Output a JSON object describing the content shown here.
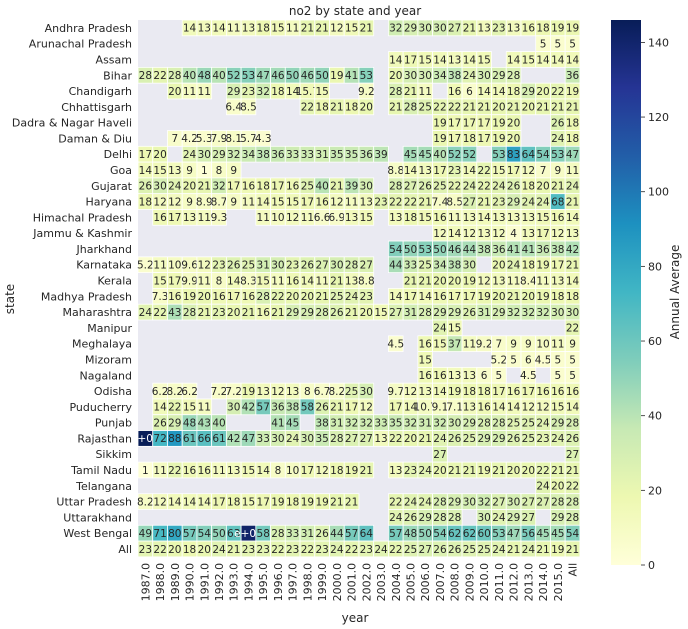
{
  "chart_data": {
    "type": "heatmap",
    "title": "no2 by state and year",
    "xlabel": "year",
    "ylabel": "state",
    "colorbar_label": "Annual Average",
    "colorbar_ticks": [
      0,
      20,
      40,
      60,
      80,
      100,
      120,
      140
    ],
    "vmin": 0,
    "vmax": 146,
    "colormap": "YlGnBu",
    "x_labels": [
      "1987.0",
      "1988.0",
      "1989.0",
      "1990.0",
      "1991.0",
      "1992.0",
      "1993.0",
      "1994.0",
      "1995.0",
      "1996.0",
      "1997.0",
      "1998.0",
      "1999.0",
      "2000.0",
      "2001.0",
      "2002.0",
      "2003.0",
      "2004.0",
      "2005.0",
      "2006.0",
      "2007.0",
      "2008.0",
      "2009.0",
      "2010.0",
      "2011.0",
      "2012.0",
      "2013.0",
      "2014.0",
      "2015.0",
      "All"
    ],
    "y_labels": [
      "Andhra Pradesh",
      "Arunachal Pradesh",
      "Assam",
      "Bihar",
      "Chandigarh",
      "Chhattisgarh",
      "Dadra & Nagar Haveli",
      "Daman & Diu",
      "Delhi",
      "Goa",
      "Gujarat",
      "Haryana",
      "Himachal Pradesh",
      "Jammu & Kashmir",
      "Jharkhand",
      "Karnataka",
      "Kerala",
      "Madhya Pradesh",
      "Maharashtra",
      "Manipur",
      "Meghalaya",
      "Mizoram",
      "Nagaland",
      "Odisha",
      "Puducherry",
      "Punjab",
      "Rajasthan",
      "Sikkim",
      "Tamil Nadu",
      "Telangana",
      "Uttar Pradesh",
      "Uttarakhand",
      "West Bengal",
      "All"
    ],
    "values": [
      [
        null,
        null,
        null,
        14,
        13,
        14,
        11,
        13,
        18,
        15,
        11,
        21,
        21,
        12,
        15,
        21,
        null,
        32,
        29,
        30,
        30,
        27,
        21,
        13,
        23,
        13,
        16,
        18,
        19,
        19
      ],
      [
        null,
        null,
        null,
        null,
        null,
        null,
        null,
        null,
        null,
        null,
        null,
        null,
        null,
        null,
        null,
        null,
        null,
        null,
        null,
        null,
        null,
        null,
        null,
        null,
        null,
        null,
        null,
        5,
        5,
        5
      ],
      [
        null,
        null,
        null,
        null,
        null,
        null,
        null,
        null,
        null,
        null,
        null,
        null,
        null,
        null,
        null,
        null,
        null,
        14,
        17,
        15,
        14,
        13,
        14,
        15,
        null,
        14,
        15,
        14,
        14,
        14
      ],
      [
        28,
        22,
        28,
        40,
        48,
        40,
        52,
        53,
        47,
        46,
        50,
        46,
        50,
        19,
        41,
        53,
        null,
        20,
        30,
        30,
        34,
        38,
        24,
        30,
        29,
        28,
        null,
        null,
        null,
        36
      ],
      [
        null,
        null,
        20,
        11,
        11,
        null,
        29,
        23,
        32,
        18,
        14,
        15.7,
        15,
        null,
        null,
        9.2,
        null,
        28,
        21,
        11,
        null,
        16,
        6,
        14,
        14,
        18,
        29,
        20,
        22,
        19
      ],
      [
        null,
        null,
        null,
        null,
        null,
        null,
        6.4,
        8.5,
        null,
        null,
        null,
        22,
        18,
        21,
        18,
        20,
        null,
        21,
        28,
        25,
        22,
        22,
        21,
        21,
        20,
        21,
        20,
        21,
        21,
        21
      ],
      [
        null,
        null,
        null,
        null,
        null,
        null,
        null,
        null,
        null,
        null,
        null,
        null,
        null,
        null,
        null,
        null,
        null,
        null,
        null,
        null,
        19,
        17,
        17,
        17,
        19,
        20,
        null,
        null,
        26,
        18
      ],
      [
        null,
        null,
        7,
        4.2,
        5.3,
        7.9,
        8.1,
        5.7,
        4.3,
        null,
        null,
        null,
        null,
        null,
        null,
        null,
        null,
        null,
        null,
        null,
        19,
        17,
        18,
        17,
        19,
        20,
        null,
        null,
        24,
        18
      ],
      [
        17,
        20,
        null,
        24,
        30,
        29,
        32,
        34,
        38,
        36,
        33,
        33,
        31,
        35,
        35,
        36,
        39,
        null,
        45,
        45,
        40,
        52,
        52,
        null,
        53,
        83,
        64,
        54,
        53,
        47
      ],
      [
        14,
        15,
        13,
        9,
        1,
        8,
        9,
        null,
        null,
        null,
        null,
        null,
        null,
        null,
        null,
        null,
        null,
        8.8,
        14,
        13,
        17,
        23,
        14,
        22,
        15,
        17,
        12,
        7,
        9,
        11
      ],
      [
        26,
        30,
        24,
        20,
        21,
        32,
        17,
        16,
        18,
        17,
        16,
        25,
        40,
        21,
        39,
        30,
        null,
        28,
        27,
        26,
        25,
        22,
        24,
        22,
        24,
        26,
        18,
        20,
        21,
        24
      ],
      [
        18,
        12,
        12,
        9,
        8.9,
        8.7,
        9,
        11,
        14,
        15,
        15,
        17,
        16,
        12,
        11,
        13,
        23,
        22,
        22,
        21,
        7.4,
        8.5,
        27,
        21,
        23,
        29,
        24,
        24,
        68,
        21
      ],
      [
        null,
        16,
        17,
        13,
        11,
        9.3,
        null,
        null,
        11,
        10,
        12,
        11,
        6.6,
        6.9,
        13,
        15,
        null,
        13,
        18,
        15,
        16,
        11,
        13,
        14,
        13,
        13,
        13,
        15,
        16,
        14
      ],
      [
        null,
        null,
        null,
        null,
        null,
        null,
        null,
        null,
        null,
        null,
        null,
        null,
        null,
        null,
        null,
        null,
        null,
        null,
        null,
        null,
        12,
        14,
        12,
        13,
        12,
        4,
        13,
        17,
        12,
        13
      ],
      [
        null,
        null,
        null,
        null,
        null,
        null,
        null,
        null,
        null,
        null,
        null,
        null,
        null,
        null,
        null,
        null,
        null,
        54,
        50,
        53,
        50,
        46,
        44,
        38,
        36,
        41,
        41,
        36,
        38,
        42
      ],
      [
        5.2,
        11,
        10,
        9.6,
        12,
        23,
        26,
        25,
        31,
        30,
        23,
        26,
        27,
        30,
        28,
        27,
        null,
        44,
        33,
        25,
        34,
        38,
        30,
        null,
        20,
        24,
        18,
        19,
        17,
        21
      ],
      [
        null,
        15,
        17,
        9.9,
        11,
        8,
        14,
        8.3,
        15,
        11,
        16,
        14,
        11,
        21,
        13,
        8.8,
        null,
        null,
        21,
        21,
        20,
        20,
        19,
        12,
        13,
        11,
        8.4,
        11,
        13,
        14
      ],
      [
        null,
        7.3,
        16,
        19,
        20,
        16,
        17,
        16,
        28,
        22,
        20,
        20,
        21,
        25,
        24,
        23,
        null,
        14,
        17,
        14,
        16,
        17,
        17,
        19,
        20,
        21,
        20,
        19,
        18,
        18
      ],
      [
        24,
        22,
        43,
        28,
        21,
        23,
        20,
        21,
        16,
        21,
        29,
        29,
        28,
        26,
        21,
        20,
        15,
        27,
        31,
        28,
        29,
        29,
        26,
        31,
        29,
        32,
        32,
        32,
        30,
        30
      ],
      [
        null,
        null,
        null,
        null,
        null,
        null,
        null,
        null,
        null,
        null,
        null,
        null,
        null,
        null,
        null,
        null,
        null,
        null,
        null,
        null,
        24,
        15,
        null,
        null,
        null,
        null,
        null,
        null,
        null,
        22
      ],
      [
        null,
        null,
        null,
        null,
        null,
        null,
        null,
        null,
        null,
        null,
        null,
        null,
        null,
        null,
        null,
        null,
        null,
        4.5,
        null,
        16,
        15,
        37,
        11,
        9.2,
        7,
        9,
        9,
        10,
        11,
        9
      ],
      [
        null,
        null,
        null,
        null,
        null,
        null,
        null,
        null,
        null,
        null,
        null,
        null,
        null,
        null,
        null,
        null,
        null,
        null,
        null,
        15,
        null,
        null,
        null,
        null,
        5.2,
        5,
        6,
        4.5,
        5,
        5
      ],
      [
        null,
        null,
        null,
        null,
        null,
        null,
        null,
        null,
        null,
        null,
        null,
        null,
        null,
        null,
        null,
        null,
        null,
        null,
        null,
        16,
        16,
        13,
        13,
        6,
        5,
        null,
        4.5,
        null,
        5,
        5
      ],
      [
        null,
        6.2,
        8.2,
        6.2,
        null,
        7.2,
        7.2,
        19,
        13,
        12,
        13,
        8,
        6.7,
        8.2,
        25,
        30,
        null,
        9.7,
        12,
        13,
        14,
        19,
        18,
        18,
        17,
        16,
        17,
        16,
        16,
        16
      ],
      [
        null,
        14,
        22,
        15,
        11,
        null,
        30,
        42,
        57,
        36,
        38,
        58,
        26,
        21,
        17,
        12,
        null,
        17,
        14,
        10.7,
        9.1,
        7.1,
        13,
        16,
        14,
        14,
        12,
        12,
        15,
        14
      ],
      [
        null,
        26,
        29,
        48,
        43,
        40,
        null,
        null,
        null,
        41,
        45,
        null,
        38,
        31,
        32,
        32,
        33,
        35,
        32,
        31,
        32,
        30,
        29,
        28,
        28,
        25,
        25,
        24,
        29,
        28
      ],
      [
        146,
        72,
        88,
        61,
        66,
        61,
        42,
        47,
        33,
        30,
        24,
        30,
        35,
        28,
        27,
        27,
        13,
        22,
        20,
        21,
        24,
        26,
        25,
        29,
        29,
        26,
        25,
        23,
        24,
        26
      ],
      [
        null,
        null,
        null,
        null,
        null,
        null,
        null,
        null,
        null,
        null,
        null,
        null,
        null,
        null,
        null,
        null,
        null,
        null,
        null,
        null,
        27,
        null,
        null,
        null,
        null,
        null,
        null,
        null,
        null,
        27
      ],
      [
        1,
        11,
        22,
        16,
        16,
        11,
        13,
        15,
        14,
        8,
        10,
        17,
        12,
        18,
        19,
        21,
        null,
        13,
        23,
        24,
        20,
        21,
        21,
        19,
        21,
        20,
        20,
        22,
        21,
        21
      ],
      [
        null,
        null,
        null,
        null,
        null,
        null,
        null,
        null,
        null,
        null,
        null,
        null,
        null,
        null,
        null,
        null,
        null,
        null,
        null,
        null,
        null,
        null,
        null,
        null,
        null,
        null,
        null,
        24,
        20,
        22
      ],
      [
        8.2,
        12,
        14,
        14,
        14,
        17,
        18,
        15,
        17,
        19,
        18,
        19,
        19,
        21,
        21,
        null,
        null,
        22,
        24,
        24,
        28,
        29,
        30,
        32,
        27,
        30,
        27,
        27,
        28,
        28
      ],
      [
        null,
        null,
        null,
        null,
        null,
        null,
        null,
        null,
        null,
        null,
        null,
        null,
        null,
        null,
        null,
        null,
        null,
        24,
        26,
        29,
        28,
        28,
        null,
        30,
        24,
        29,
        27,
        null,
        29,
        28
      ],
      [
        49,
        71,
        80,
        57,
        54,
        50,
        63,
        141,
        58,
        28,
        33,
        31,
        26,
        44,
        57,
        64,
        null,
        57,
        48,
        50,
        54,
        62,
        62,
        60,
        53,
        47,
        56,
        45,
        45,
        54
      ],
      [
        23,
        22,
        20,
        18,
        20,
        24,
        21,
        23,
        23,
        22,
        23,
        22,
        23,
        24,
        22,
        23,
        24,
        22,
        25,
        27,
        26,
        26,
        25,
        25,
        24,
        21,
        24,
        21,
        19,
        21
      ]
    ],
    "display_text": {
      "26-0": "e+02",
      "32-7": "e+02"
    }
  }
}
